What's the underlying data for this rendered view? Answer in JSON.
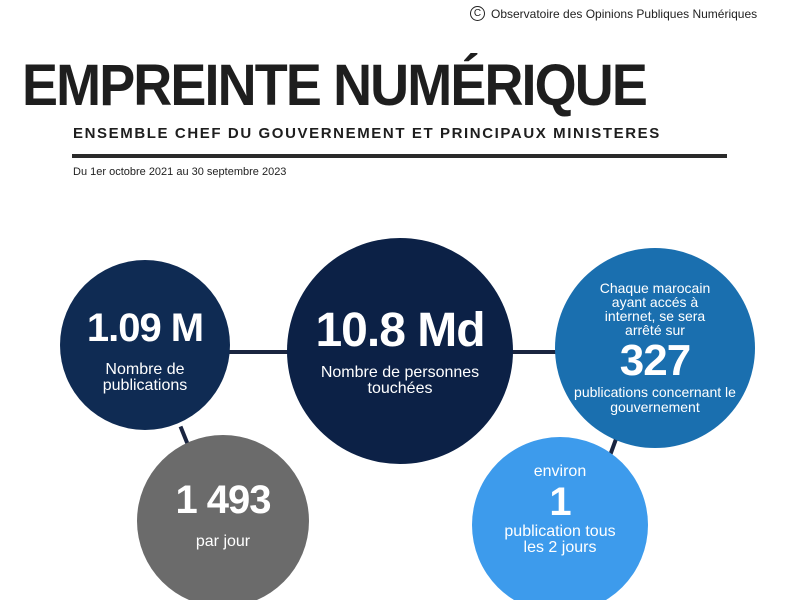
{
  "header": {
    "copyright": "Observatoire des Opinions Publiques Numériques",
    "title": "EMPREINTE NUMÉRIQUE",
    "subtitle": "ENSEMBLE CHEF DU GOUVERNEMENT ET PRINCIPAUX MINISTERES",
    "period": "Du 1er octobre 2021 au 30 septembre 2023"
  },
  "stats": [
    {
      "value": "1.09 M",
      "label": "Nombre de publications"
    },
    {
      "value": "10.8 Md",
      "label": "Nombre de personnes touchées"
    },
    {
      "intro": "Chaque marocain ayant accés à internet, se sera arrêté sur",
      "value": "327",
      "label": "publications concernant le gouvernement"
    },
    {
      "value": "1 493",
      "label": "par jour"
    },
    {
      "intro": "environ",
      "value": "1",
      "label": "publication tous les 2 jours"
    }
  ]
}
